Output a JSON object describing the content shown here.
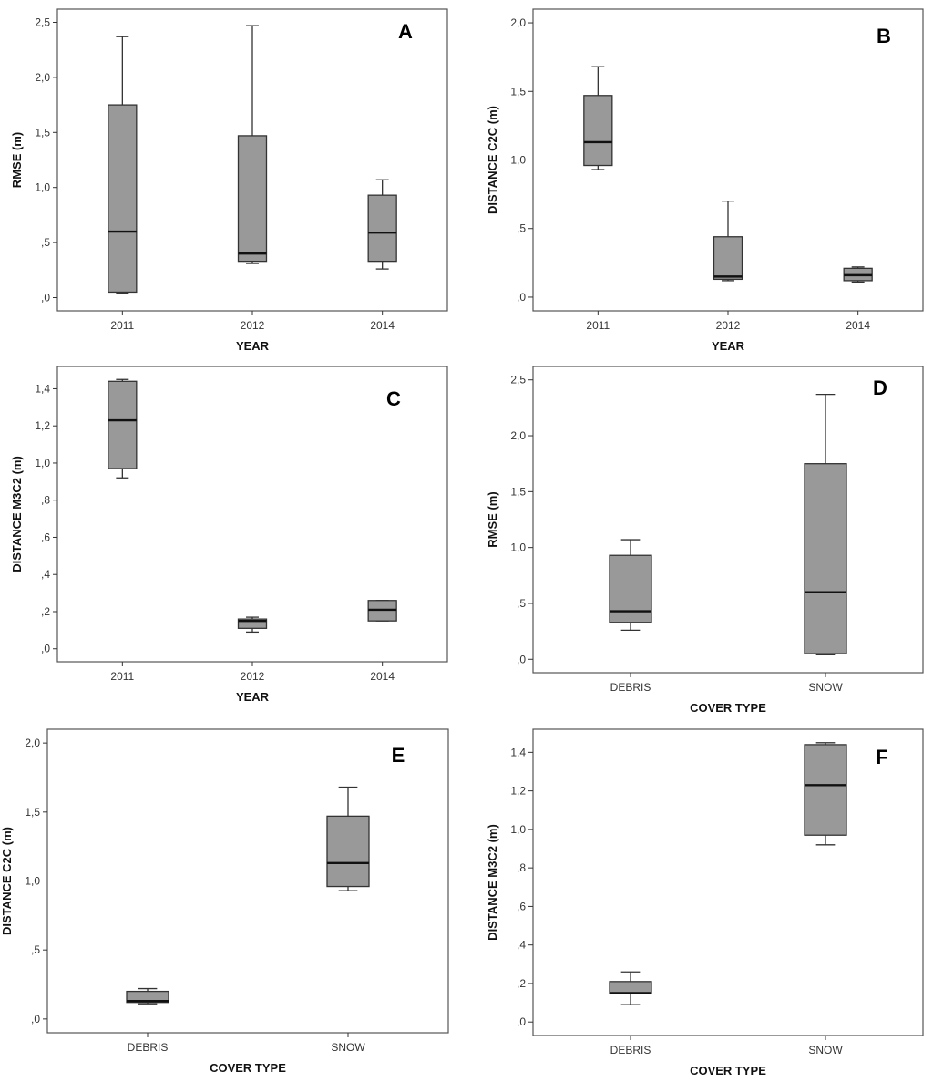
{
  "box_fill": "#999999",
  "line_color": "#333333",
  "chart_data": [
    {
      "panel": "A",
      "type": "boxplot",
      "xlabel": "YEAR",
      "ylabel": "RMSE (m)",
      "categories": [
        "2011",
        "2012",
        "2014"
      ],
      "ylim": [
        -0.12,
        2.62
      ],
      "yticks": [
        0,
        0.5,
        1.0,
        1.5,
        2.0,
        2.5
      ],
      "ytick_labels": [
        ",0",
        ",5",
        "1,0",
        "1,5",
        "2,0",
        "2,5"
      ],
      "boxes": [
        {
          "min": 0.04,
          "q1": 0.05,
          "median": 0.6,
          "q3": 1.75,
          "max": 2.37
        },
        {
          "min": 0.31,
          "q1": 0.33,
          "median": 0.4,
          "q3": 1.47,
          "max": 2.47
        },
        {
          "min": 0.26,
          "q1": 0.33,
          "median": 0.59,
          "q3": 0.93,
          "max": 1.07
        }
      ]
    },
    {
      "panel": "B",
      "type": "boxplot",
      "xlabel": "YEAR",
      "ylabel": "DISTANCE C2C (m)",
      "categories": [
        "2011",
        "2012",
        "2014"
      ],
      "ylim": [
        -0.1,
        2.1
      ],
      "yticks": [
        0,
        0.5,
        1.0,
        1.5,
        2.0
      ],
      "ytick_labels": [
        ",0",
        ",5",
        "1,0",
        "1,5",
        "2,0"
      ],
      "boxes": [
        {
          "min": 0.93,
          "q1": 0.96,
          "median": 1.13,
          "q3": 1.47,
          "max": 1.68
        },
        {
          "min": 0.12,
          "q1": 0.13,
          "median": 0.15,
          "q3": 0.44,
          "max": 0.7
        },
        {
          "min": 0.11,
          "q1": 0.12,
          "median": 0.16,
          "q3": 0.21,
          "max": 0.22
        }
      ]
    },
    {
      "panel": "C",
      "type": "boxplot",
      "xlabel": "YEAR",
      "ylabel": "DISTANCE M3C2 (m)",
      "categories": [
        "2011",
        "2012",
        "2014"
      ],
      "ylim": [
        -0.07,
        1.52
      ],
      "yticks": [
        0,
        0.2,
        0.4,
        0.6,
        0.8,
        1.0,
        1.2,
        1.4
      ],
      "ytick_labels": [
        ",0",
        ",2",
        ",4",
        ",6",
        ",8",
        "1,0",
        "1,2",
        "1,4"
      ],
      "boxes": [
        {
          "min": 0.92,
          "q1": 0.97,
          "median": 1.23,
          "q3": 1.44,
          "max": 1.45
        },
        {
          "min": 0.09,
          "q1": 0.11,
          "median": 0.15,
          "q3": 0.16,
          "max": 0.17
        },
        {
          "min": 0.15,
          "q1": 0.15,
          "median": 0.21,
          "q3": 0.26,
          "max": 0.26
        }
      ]
    },
    {
      "panel": "D",
      "type": "boxplot",
      "xlabel": "COVER TYPE",
      "ylabel": "RMSE (m)",
      "categories": [
        "DEBRIS",
        "SNOW"
      ],
      "ylim": [
        -0.12,
        2.62
      ],
      "yticks": [
        0,
        0.5,
        1.0,
        1.5,
        2.0,
        2.5
      ],
      "ytick_labels": [
        ",0",
        ",5",
        "1,0",
        "1,5",
        "2,0",
        "2,5"
      ],
      "boxes": [
        {
          "min": 0.26,
          "q1": 0.33,
          "median": 0.43,
          "q3": 0.93,
          "max": 1.07
        },
        {
          "min": 0.04,
          "q1": 0.05,
          "median": 0.6,
          "q3": 1.75,
          "max": 2.37
        }
      ]
    },
    {
      "panel": "E",
      "type": "boxplot",
      "xlabel": "COVER TYPE",
      "ylabel": "DISTANCE C2C (m)",
      "categories": [
        "DEBRIS",
        "SNOW"
      ],
      "ylim": [
        -0.1,
        2.1
      ],
      "yticks": [
        0,
        0.5,
        1.0,
        1.5,
        2.0
      ],
      "ytick_labels": [
        ",0",
        ",5",
        "1,0",
        "1,5",
        "2,0"
      ],
      "boxes": [
        {
          "min": 0.11,
          "q1": 0.12,
          "median": 0.13,
          "q3": 0.2,
          "max": 0.22
        },
        {
          "min": 0.93,
          "q1": 0.96,
          "median": 1.13,
          "q3": 1.47,
          "max": 1.68
        }
      ]
    },
    {
      "panel": "F",
      "type": "boxplot",
      "xlabel": "COVER TYPE",
      "ylabel": "DISTANCE M3C2 (m)",
      "categories": [
        "DEBRIS",
        "SNOW"
      ],
      "ylim": [
        -0.07,
        1.52
      ],
      "yticks": [
        0,
        0.2,
        0.4,
        0.6,
        0.8,
        1.0,
        1.2,
        1.4
      ],
      "ytick_labels": [
        ",0",
        ",2",
        ",4",
        ",6",
        ",8",
        "1,0",
        "1,2",
        "1,4"
      ],
      "boxes": [
        {
          "min": 0.09,
          "q1": 0.15,
          "median": 0.15,
          "q3": 0.21,
          "max": 0.26
        },
        {
          "min": 0.92,
          "q1": 0.97,
          "median": 1.23,
          "q3": 1.44,
          "max": 1.45
        }
      ]
    }
  ]
}
